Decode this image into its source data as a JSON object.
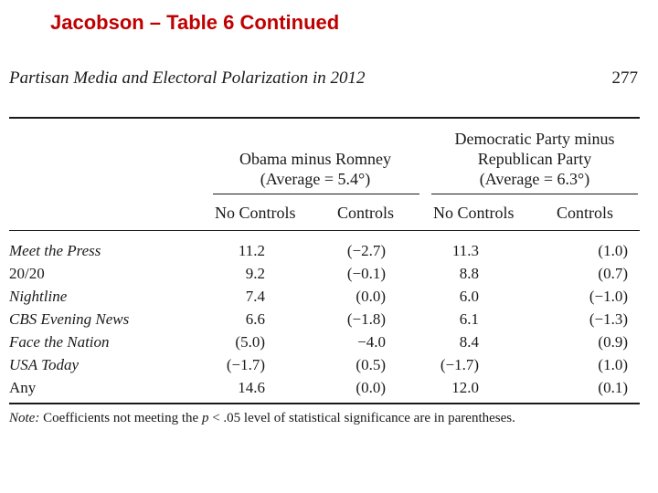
{
  "slide_title": "Jacobson – Table 6 Continued",
  "page_header": "Partisan Media and Electoral Polarization in 2012",
  "page_number": "277",
  "groups": [
    {
      "line1": "Obama minus Romney",
      "line2": "",
      "line3": "(Average = 5.4°)"
    },
    {
      "line1": "Democratic Party minus",
      "line2": "Republican Party",
      "line3": "(Average = 6.3°)"
    }
  ],
  "columns": [
    "No Controls",
    "Controls",
    "No Controls",
    "Controls"
  ],
  "rows": [
    {
      "label": "Meet the Press",
      "values": [
        "11.2",
        "(−2.7)",
        "11.3",
        "(1.0)"
      ]
    },
    {
      "label": "20/20",
      "values": [
        "9.2",
        "(−0.1)",
        "8.8",
        "(0.7)"
      ]
    },
    {
      "label": "Nightline",
      "values": [
        "7.4",
        "(0.0)",
        "6.0",
        "(−1.0)"
      ]
    },
    {
      "label": "CBS Evening News",
      "values": [
        "6.6",
        "(−1.8)",
        "6.1",
        "(−1.3)"
      ]
    },
    {
      "label": "Face the Nation",
      "values": [
        "(5.0)",
        "−4.0",
        "8.4",
        "(0.9)"
      ]
    },
    {
      "label": "USA Today",
      "values": [
        "(−1.7)",
        "(0.5)",
        "(−1.7)",
        "(1.0)"
      ]
    },
    {
      "label": "Any",
      "values": [
        "14.6",
        "(0.0)",
        "12.0",
        "(0.1)"
      ]
    }
  ],
  "note": {
    "label": "Note:",
    "text_before": "Coefficients not meeting the",
    "variable": "p",
    "text_after": "< .05 level of statistical significance are in parentheses."
  }
}
